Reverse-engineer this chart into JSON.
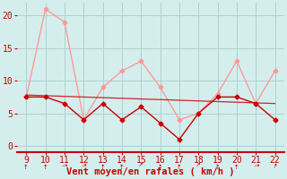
{
  "x": [
    9,
    10,
    11,
    12,
    13,
    14,
    15,
    16,
    17,
    18,
    19,
    20,
    21,
    22
  ],
  "series_dark_red": [
    7.5,
    7.5,
    6.5,
    4.0,
    6.5,
    4.0,
    6.0,
    3.5,
    1.0,
    5.0,
    7.5,
    7.5,
    6.5,
    4.0
  ],
  "series_light_red": [
    7.5,
    21.0,
    19.0,
    4.0,
    9.0,
    11.5,
    13.0,
    9.0,
    4.0,
    5.0,
    8.0,
    13.0,
    6.5,
    11.5
  ],
  "series_trend": [
    7.8,
    7.7,
    7.6,
    7.5,
    7.4,
    7.3,
    7.2,
    7.1,
    7.0,
    6.9,
    6.8,
    6.7,
    6.6,
    6.5
  ],
  "ylim": [
    -1,
    22
  ],
  "yticks": [
    0,
    5,
    10,
    15,
    20
  ],
  "xlim": [
    8.5,
    22.5
  ],
  "xticks": [
    9,
    10,
    11,
    12,
    13,
    14,
    15,
    16,
    17,
    18,
    19,
    20,
    21,
    22
  ],
  "xlabel": "Vent moyen/en rafales ( km/h )",
  "bg_color": "#d4eeee",
  "dark_red": "#cc0000",
  "light_red": "#ff9999",
  "grid_color": "#b0d0d0",
  "xlabel_color": "#cc0000",
  "tick_color": "#cc0000",
  "spine_color": "#cc0000",
  "xlabel_fontsize": 7.5,
  "tick_fontsize": 7
}
